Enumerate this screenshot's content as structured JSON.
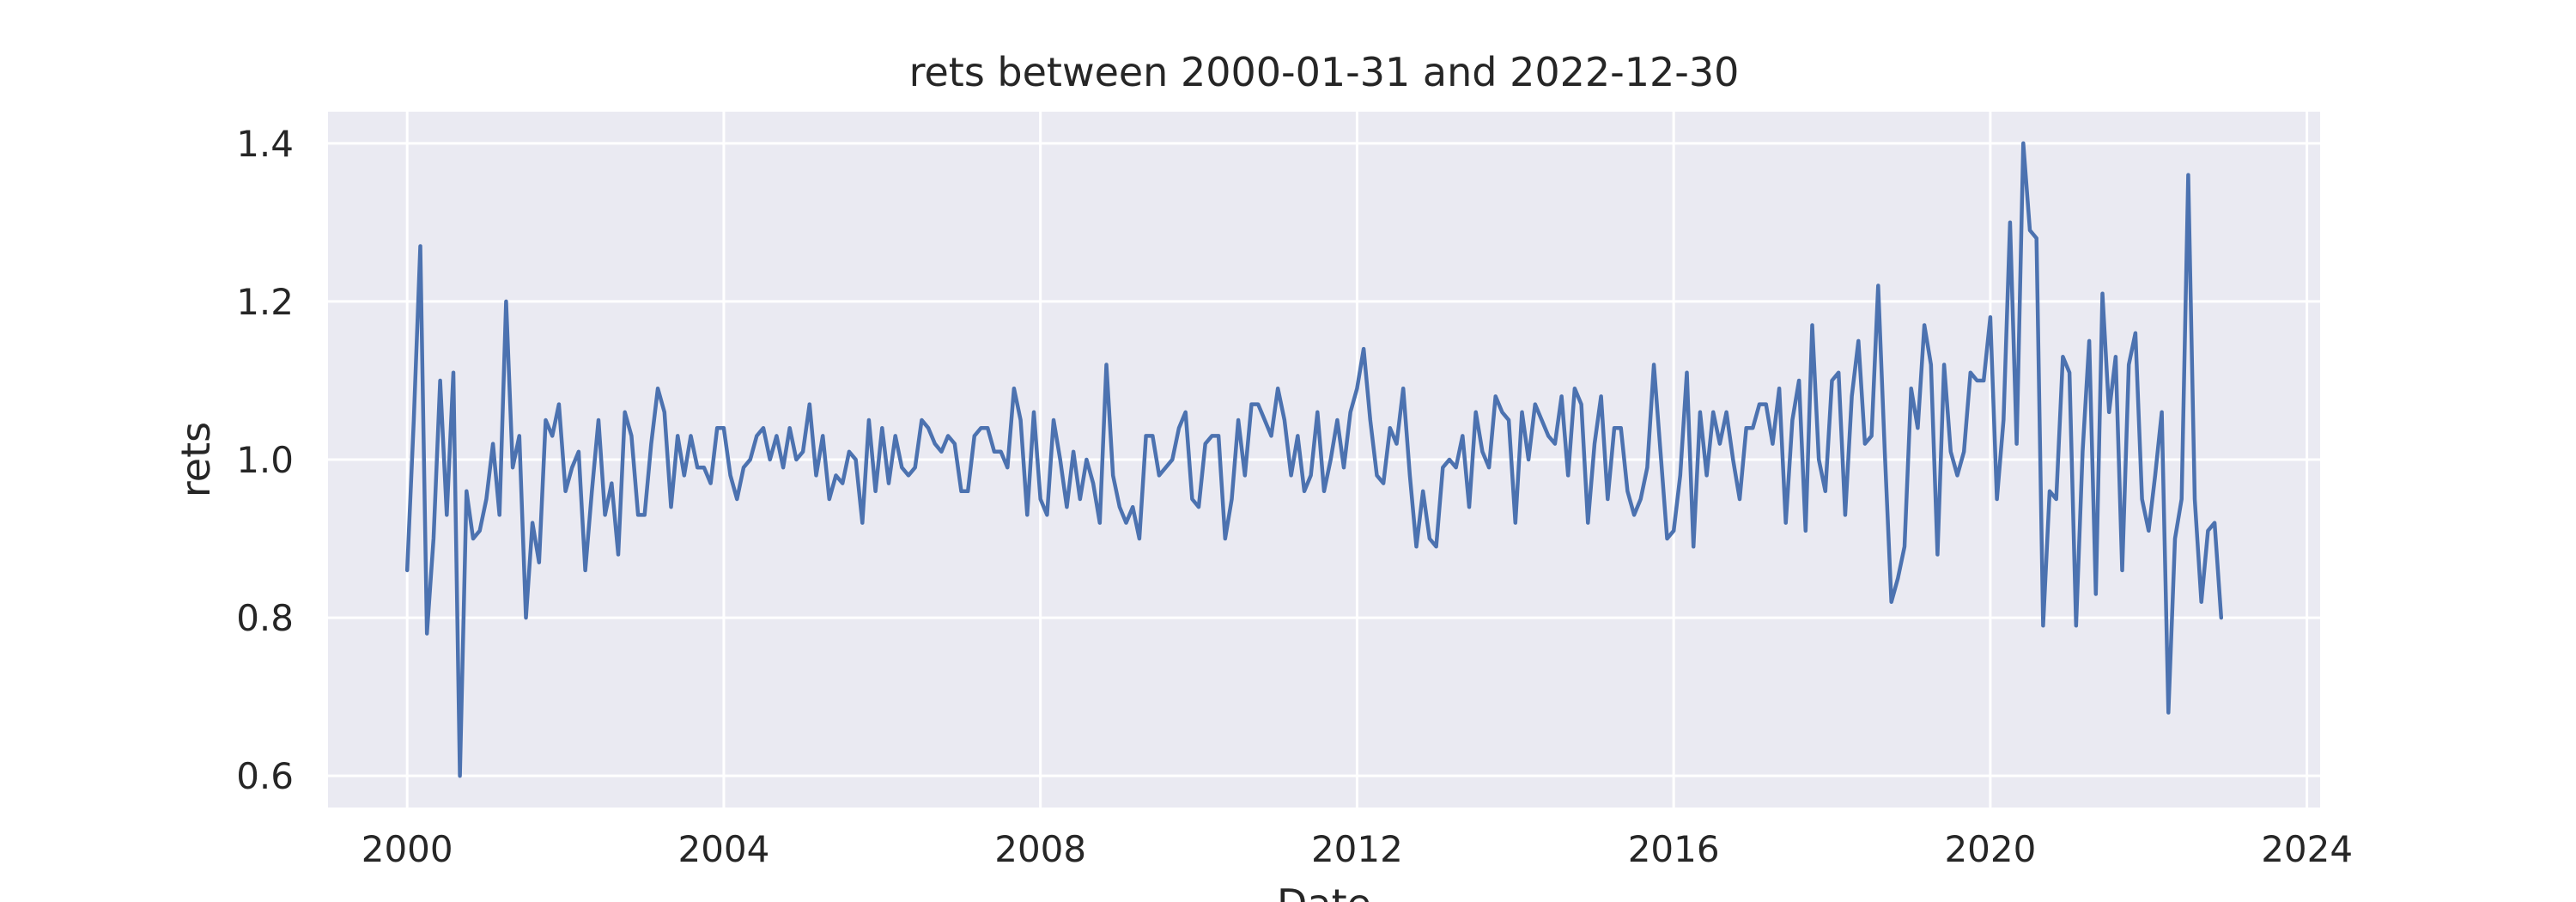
{
  "chart_data": {
    "type": "line",
    "title": "rets between 2000-01-31 and 2022-12-30",
    "xlabel": "Date",
    "ylabel": "rets",
    "xlim": [
      "1999-01-01",
      "2024-03-01"
    ],
    "ylim": [
      0.56,
      1.44
    ],
    "x_ticks": [
      "2000",
      "2004",
      "2008",
      "2012",
      "2016",
      "2020",
      "2024"
    ],
    "y_ticks": [
      "0.6",
      "0.8",
      "1.0",
      "1.2",
      "1.4"
    ],
    "grid": true,
    "colors": {
      "background": "#eaeaf2",
      "grid": "#ffffff",
      "line": "#4c72b0"
    },
    "series": [
      {
        "x_start": "2000-01",
        "frequency": "monthly",
        "values": [
          0.86,
          1.05,
          1.27,
          0.78,
          0.9,
          1.1,
          0.93,
          1.11,
          0.6,
          0.96,
          0.9,
          0.91,
          0.95,
          1.02,
          0.93,
          1.2,
          0.99,
          1.03,
          0.8,
          0.92,
          0.87,
          1.05,
          1.03,
          1.07,
          0.96,
          0.99,
          1.01,
          0.86,
          0.96,
          1.05,
          0.93,
          0.97,
          0.88,
          1.06,
          1.03,
          0.93,
          0.93,
          1.02,
          1.09,
          1.06,
          0.94,
          1.03,
          0.98,
          1.03,
          0.99,
          0.99,
          0.97,
          1.04,
          1.04,
          0.98,
          0.95,
          0.99,
          1.0,
          1.03,
          1.04,
          1.0,
          1.03,
          0.99,
          1.04,
          1.0,
          1.01,
          1.07,
          0.98,
          1.03,
          0.95,
          0.98,
          0.97,
          1.01,
          1.0,
          0.92,
          1.05,
          0.96,
          1.04,
          0.97,
          1.03,
          0.99,
          0.98,
          0.99,
          1.05,
          1.04,
          1.02,
          1.01,
          1.03,
          1.02,
          0.96,
          0.96,
          1.03,
          1.04,
          1.04,
          1.01,
          1.01,
          0.99,
          1.09,
          1.05,
          0.93,
          1.06,
          0.95,
          0.93,
          1.05,
          1.0,
          0.94,
          1.01,
          0.95,
          1.0,
          0.97,
          0.92,
          1.12,
          0.98,
          0.94,
          0.92,
          0.94,
          0.9,
          1.03,
          1.03,
          0.98,
          0.99,
          1.0,
          1.04,
          1.06,
          0.95,
          0.94,
          1.02,
          1.03,
          1.03,
          0.9,
          0.95,
          1.05,
          0.98,
          1.07,
          1.07,
          1.05,
          1.03,
          1.09,
          1.05,
          0.98,
          1.03,
          0.96,
          0.98,
          1.06,
          0.96,
          1.0,
          1.05,
          0.99,
          1.06,
          1.09,
          1.14,
          1.05,
          0.98,
          0.97,
          1.04,
          1.02,
          1.09,
          0.98,
          0.89,
          0.96,
          0.9,
          0.89,
          0.99,
          1.0,
          0.99,
          1.03,
          0.94,
          1.06,
          1.01,
          0.99,
          1.08,
          1.06,
          1.05,
          0.92,
          1.06,
          1.0,
          1.07,
          1.05,
          1.03,
          1.02,
          1.08,
          0.98,
          1.09,
          1.07,
          0.92,
          1.02,
          1.08,
          0.95,
          1.04,
          1.04,
          0.96,
          0.93,
          0.95,
          0.99,
          1.12,
          1.01,
          0.9,
          0.91,
          0.98,
          1.11,
          0.89,
          1.06,
          0.98,
          1.06,
          1.02,
          1.06,
          1.0,
          0.95,
          1.04,
          1.04,
          1.07,
          1.07,
          1.02,
          1.09,
          0.92,
          1.05,
          1.1,
          0.91,
          1.17,
          1.0,
          0.96,
          1.1,
          1.11,
          0.93,
          1.08,
          1.15,
          1.02,
          1.03,
          1.22,
          1.01,
          0.82,
          0.85,
          0.89,
          1.09,
          1.04,
          1.17,
          1.12,
          0.88,
          1.12,
          1.01,
          0.98,
          1.01,
          1.11,
          1.1,
          1.1,
          1.18,
          0.95,
          1.05,
          1.3,
          1.02,
          1.4,
          1.29,
          1.28,
          0.79,
          0.96,
          0.95,
          1.13,
          1.11,
          0.79,
          1.01,
          1.15,
          0.83,
          1.21,
          1.06,
          1.13,
          0.86,
          1.12,
          1.16,
          0.95,
          0.91,
          0.98,
          1.06,
          0.68,
          0.9,
          0.95,
          1.36,
          0.95,
          0.82,
          0.91,
          0.92,
          0.8
        ]
      }
    ]
  }
}
